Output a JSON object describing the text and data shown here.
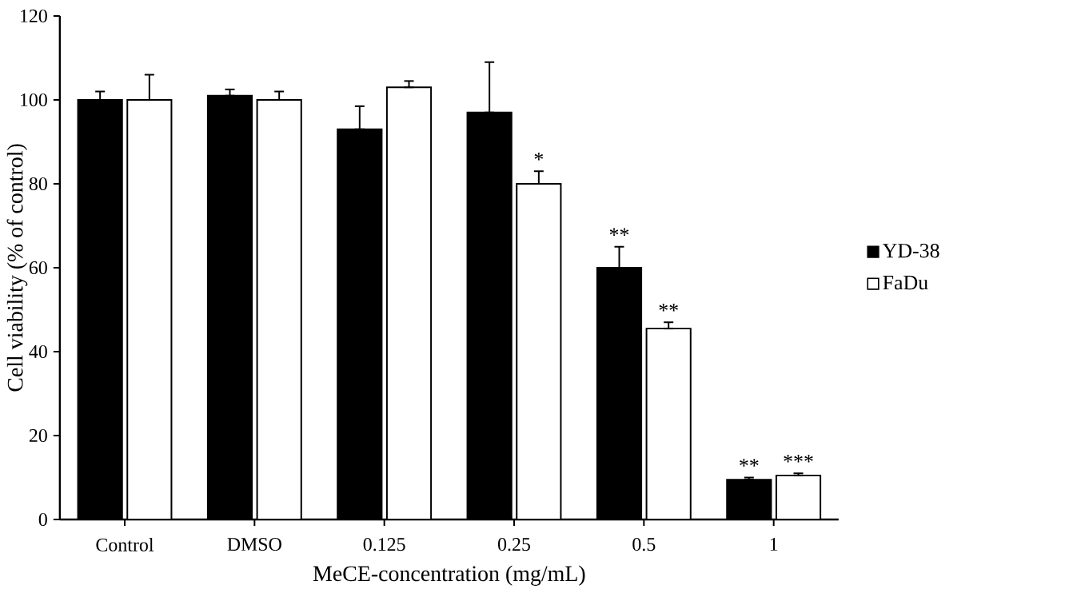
{
  "chart_data": {
    "type": "bar",
    "xlabel": "MeCE-concentration (mg/mL)",
    "ylabel": "Cell viability (% of control)",
    "categories": [
      "Control",
      "DMSO",
      "0.125",
      "0.25",
      "0.5",
      "1"
    ],
    "series": [
      {
        "name": "YD-38",
        "color": "#000000",
        "values": [
          100,
          101,
          93,
          97,
          60,
          9.5
        ],
        "errors": [
          [
            100,
            102
          ],
          [
            101,
            102.5
          ],
          [
            93,
            98.5
          ],
          [
            97,
            109
          ],
          [
            60,
            65
          ],
          [
            9.5,
            10
          ]
        ]
      },
      {
        "name": "FaDu",
        "color": "#ffffff",
        "values": [
          100,
          100,
          103,
          80,
          45.5,
          10.5
        ],
        "errors": [
          [
            100,
            106
          ],
          [
            100,
            102
          ],
          [
            103,
            104.5
          ],
          [
            80,
            83
          ],
          [
            45.5,
            47
          ],
          [
            10.5,
            11
          ]
        ]
      }
    ],
    "ylim": [
      0,
      120
    ],
    "yticks": [
      0,
      20,
      40,
      60,
      80,
      100,
      120
    ],
    "legend": "right",
    "annotations": [
      {
        "text": "*",
        "x": "0.25",
        "y": 80
      },
      {
        "text": "**",
        "x": "0.5",
        "y": 60
      },
      {
        "text": "**",
        "x": "0.5",
        "y": 45.5
      },
      {
        "text": "**",
        "x": "1",
        "y": 9.5
      },
      {
        "text": "***",
        "x": "1",
        "y": 10.5
      }
    ]
  }
}
